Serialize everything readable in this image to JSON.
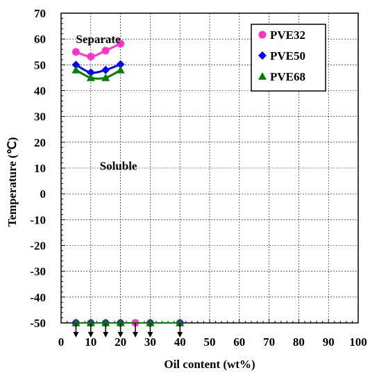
{
  "chart_data": {
    "type": "scatter",
    "xlabel": "Oil content (wt%)",
    "ylabel": "Temperature (℃)",
    "xlim": [
      0,
      100
    ],
    "ylim": [
      -50,
      70
    ],
    "x_ticks": [
      0,
      10,
      20,
      30,
      40,
      50,
      60,
      70,
      80,
      90,
      100
    ],
    "y_ticks": [
      70,
      60,
      50,
      40,
      30,
      20,
      10,
      0,
      -10,
      -20,
      -30,
      -40,
      -50
    ],
    "grid": true,
    "legend_position": "top-right",
    "annotations": [
      {
        "text": "Separate",
        "x": 5,
        "y": 60
      },
      {
        "text": "Soluble",
        "x": 13,
        "y": 11
      }
    ],
    "series": [
      {
        "name": "PVE32",
        "marker": "circle",
        "color": "#ff33cc",
        "upper": {
          "x": [
            5,
            10,
            15,
            20
          ],
          "y": [
            55,
            53.2,
            55.5,
            58.2
          ]
        },
        "lower": {
          "x": [
            5,
            10,
            15,
            20,
            25,
            30,
            40
          ],
          "y": [
            -50,
            -50,
            -50,
            -50,
            -50,
            -50,
            -50
          ]
        }
      },
      {
        "name": "PVE50",
        "marker": "diamond",
        "color": "#0000ff",
        "upper": {
          "x": [
            5,
            10,
            15,
            20
          ],
          "y": [
            50,
            47,
            48,
            50.2
          ]
        },
        "lower": {
          "x": [
            5,
            10,
            15,
            20,
            30,
            40
          ],
          "y": [
            -50,
            -50,
            -50,
            -50,
            -50,
            -50
          ]
        }
      },
      {
        "name": "PVE68",
        "marker": "triangle",
        "color": "#008000",
        "upper": {
          "x": [
            5,
            10,
            15,
            20
          ],
          "y": [
            48,
            45,
            45,
            48
          ]
        },
        "lower": {
          "x": [
            5,
            10,
            15,
            20,
            30,
            40
          ],
          "y": [
            -50,
            -50,
            -50,
            -50,
            -50,
            -50
          ]
        }
      }
    ],
    "below_limit_arrows_x": [
      5,
      10,
      15,
      20,
      25,
      30,
      40
    ]
  }
}
